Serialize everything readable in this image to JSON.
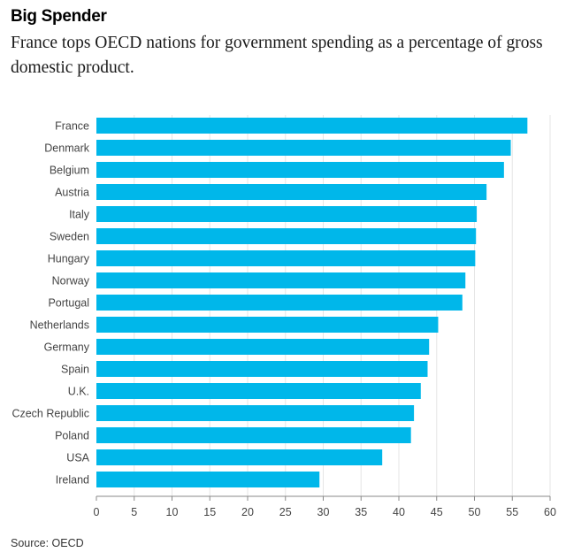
{
  "title": "Big Spender",
  "subtitle": "France tops OECD nations for government spending as a percentage of gross domestic product.",
  "source": "Source: OECD",
  "colors": {
    "bar": "#00b7ea",
    "grid": "#e5e5e5",
    "axis": "#888888"
  },
  "chart_data": {
    "type": "bar",
    "orientation": "horizontal",
    "title": "Big Spender",
    "xlabel": "",
    "ylabel": "",
    "xlim": [
      0,
      60
    ],
    "ticks": [
      0,
      5,
      10,
      15,
      20,
      25,
      30,
      35,
      40,
      45,
      50,
      55,
      60
    ],
    "grid": true,
    "categories": [
      "France",
      "Denmark",
      "Belgium",
      "Austria",
      "Italy",
      "Sweden",
      "Hungary",
      "Norway",
      "Portugal",
      "Netherlands",
      "Germany",
      "Spain",
      "U.K.",
      "Czech Republic",
      "Poland",
      "USA",
      "Ireland"
    ],
    "values": [
      57.0,
      54.8,
      53.9,
      51.6,
      50.3,
      50.2,
      50.1,
      48.8,
      48.4,
      45.2,
      44.0,
      43.8,
      42.9,
      42.0,
      41.6,
      37.8,
      29.5
    ]
  }
}
